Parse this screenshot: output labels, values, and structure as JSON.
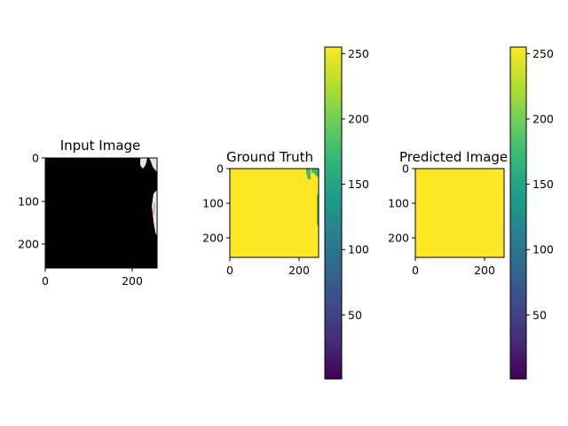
{
  "chart_data": [
    {
      "type": "heatmap",
      "title": "Input Image",
      "xticks": [
        "0",
        "200"
      ],
      "yticks": [
        "0",
        "100",
        "200"
      ],
      "x_range": [
        0,
        255
      ],
      "y_range": [
        0,
        255
      ],
      "colorbar": false
    },
    {
      "type": "heatmap",
      "title": "Ground Truth",
      "xticks": [
        "0",
        "200"
      ],
      "yticks": [
        "0",
        "100",
        "200"
      ],
      "x_range": [
        0,
        255
      ],
      "y_range": [
        0,
        255
      ],
      "colorbar": true,
      "colorbar_ticks": [
        "250",
        "200",
        "150",
        "100",
        "50"
      ],
      "colorbar_values": [
        250,
        200,
        150,
        100,
        50
      ],
      "colorbar_range": [
        1,
        255
      ]
    },
    {
      "type": "heatmap",
      "title": "Predicted Image",
      "xticks": [
        "0",
        "200"
      ],
      "yticks": [
        "0",
        "100",
        "200"
      ],
      "x_range": [
        0,
        255
      ],
      "y_range": [
        0,
        255
      ],
      "colorbar": true,
      "colorbar_ticks": [
        "250",
        "200",
        "150",
        "100",
        "50"
      ],
      "colorbar_values": [
        250,
        200,
        150,
        100,
        50
      ],
      "colorbar_range": [
        1,
        255
      ]
    }
  ],
  "colors": {
    "input_background": "#000000",
    "input_highlight": "#f2e6ec",
    "input_highlight_tint": "#d6a8c8",
    "mask_fill": "#fde725",
    "mask_edge": "#35b779",
    "viridis": [
      "#440154",
      "#482878",
      "#3e4a89",
      "#31688e",
      "#26828e",
      "#1f9e89",
      "#35b779",
      "#6ece58",
      "#b5de2b",
      "#fde725"
    ]
  }
}
